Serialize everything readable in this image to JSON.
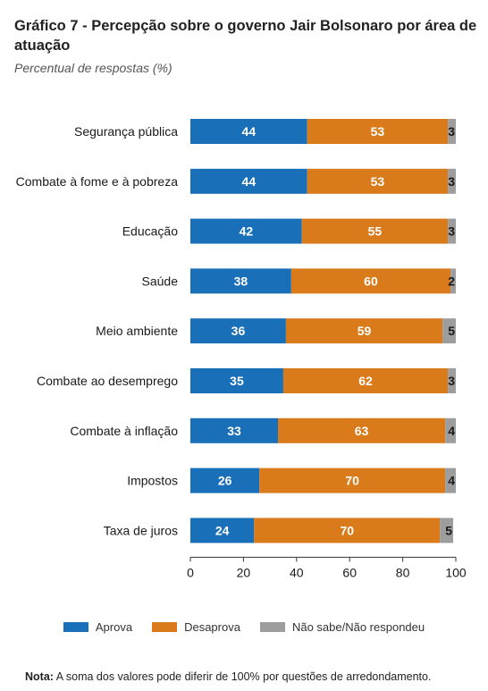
{
  "chart_data": {
    "type": "bar",
    "orientation": "horizontal",
    "stacked": true,
    "title": "Gráfico 7 - Percepção sobre o governo Jair Bolsonaro por área de atuação",
    "subtitle": "Percentual de respostas (%)",
    "categories": [
      "Segurança pública",
      "Combate à fome e à pobreza",
      "Educação",
      "Saúde",
      "Meio ambiente",
      "Combate ao desemprego",
      "Combate à inflação",
      "Impostos",
      "Taxa de juros"
    ],
    "series": [
      {
        "name": "Aprova",
        "color": "#1a70b8",
        "values": [
          44,
          44,
          42,
          38,
          36,
          35,
          33,
          26,
          24
        ]
      },
      {
        "name": "Desaprova",
        "color": "#d97a1b",
        "values": [
          53,
          53,
          55,
          60,
          59,
          62,
          63,
          70,
          70
        ]
      },
      {
        "name": "Não sabe/Não respondeu",
        "color": "#9d9d9d",
        "values": [
          3,
          3,
          3,
          2,
          5,
          3,
          4,
          4,
          5
        ]
      }
    ],
    "xlim": [
      0,
      100
    ],
    "xticks": [
      0,
      20,
      40,
      60,
      80,
      100
    ],
    "grid": false,
    "legend": "bottom"
  },
  "note": {
    "label": "Nota:",
    "text": "A soma dos valores pode diferir de 100% por questões de arredondamento."
  }
}
